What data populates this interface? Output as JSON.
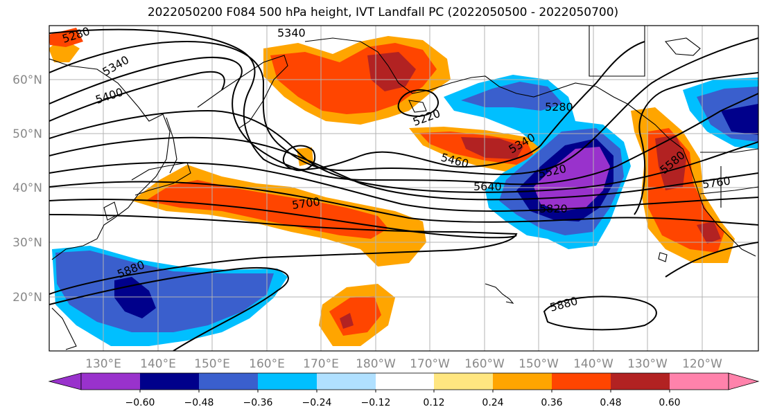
{
  "title": "2022050200 F084 500 hPa height, IVT Landfall PC (2022050500 - 2022050700)",
  "lat_labels": [
    "60°N",
    "50°N",
    "40°N",
    "30°N",
    "20°N"
  ],
  "lon_labels": [
    "130°E",
    "140°E",
    "150°E",
    "160°E",
    "170°E",
    "180°W",
    "170°W",
    "160°W",
    "150°W",
    "140°W",
    "130°W",
    "120°W"
  ],
  "contour_labels": [
    "5280",
    "5340",
    "5400",
    "5340",
    "5220",
    "5280",
    "5340",
    "5460",
    "5520",
    "5640",
    "5700",
    "5760",
    "5580",
    "5820",
    "5880",
    "5880"
  ],
  "colorbar": {
    "ticks": [
      "−0.60",
      "−0.48",
      "−0.36",
      "−0.24",
      "−0.12",
      "0.12",
      "0.24",
      "0.36",
      "0.48",
      "0.60"
    ],
    "colors": [
      "#9932cc",
      "#00008b",
      "#3a5fcd",
      "#00bfff",
      "#b0e0ff",
      "#ffffff",
      "#ffe680",
      "#ffa500",
      "#ff4500",
      "#b22222",
      "#ff82ab"
    ]
  }
}
